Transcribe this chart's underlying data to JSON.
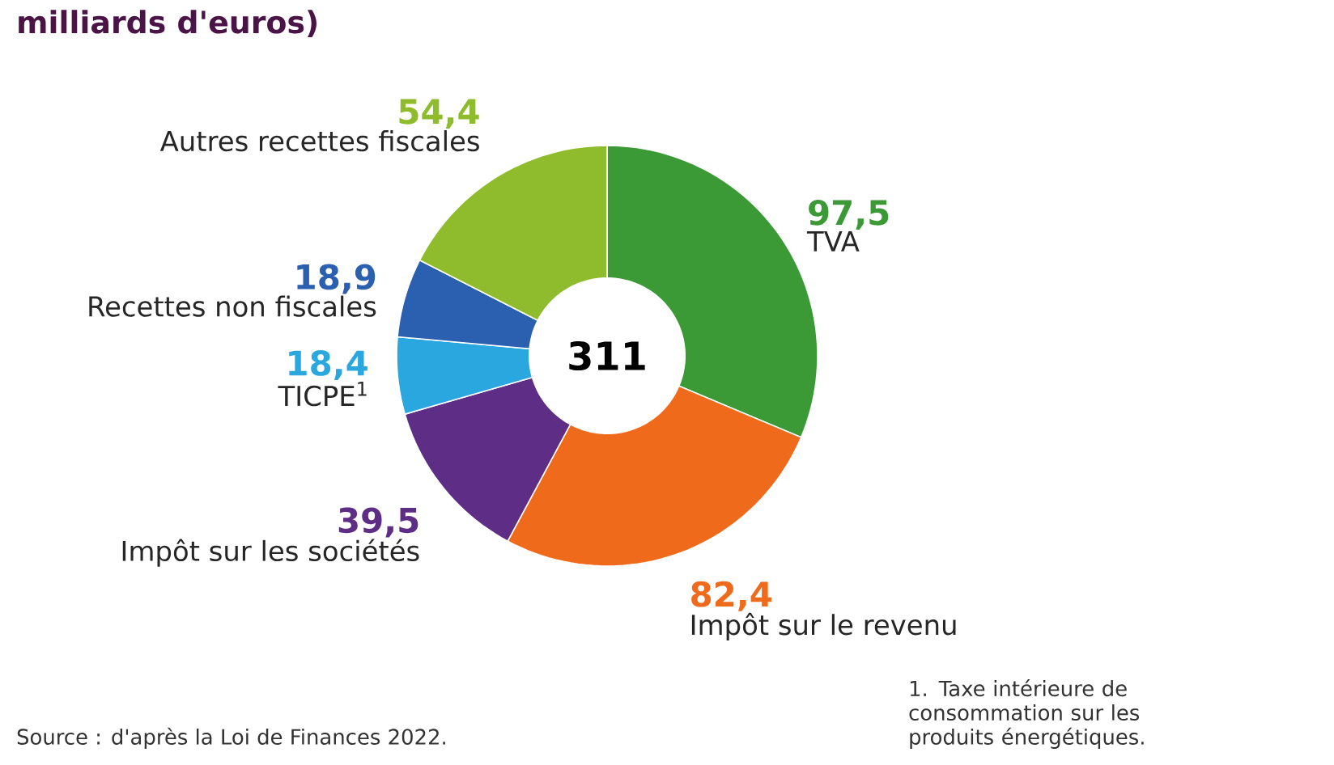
{
  "chart_data": {
    "type": "donut",
    "title": "milliards d'euros)",
    "categories": [
      "TVA",
      "Impôt sur le revenu",
      "Impôt  sur les sociétés",
      "TICPE$^{1}$",
      "Recettes non fiscales",
      "Autres recettes fiscales"
    ],
    "values": [
      97.5,
      82.4,
      39.5,
      18.4,
      18.9,
      54.4
    ],
    "colors": [
      "#3c9a36",
      "#f06a1c",
      "#5e2d85",
      "#2ba7df",
      "#2b5fb0",
      "#8fbc2d"
    ],
    "value_labels": [
      "97,5",
      "82,4",
      "39,5",
      "18,4",
      "18,9",
      "54,4"
    ],
    "annotations": [
      "311",
      "Source : d'après la Loi de Finances 2022.",
      "1. Taxe intérieure de consommation sur les produits énergétiques."
    ]
  }
}
